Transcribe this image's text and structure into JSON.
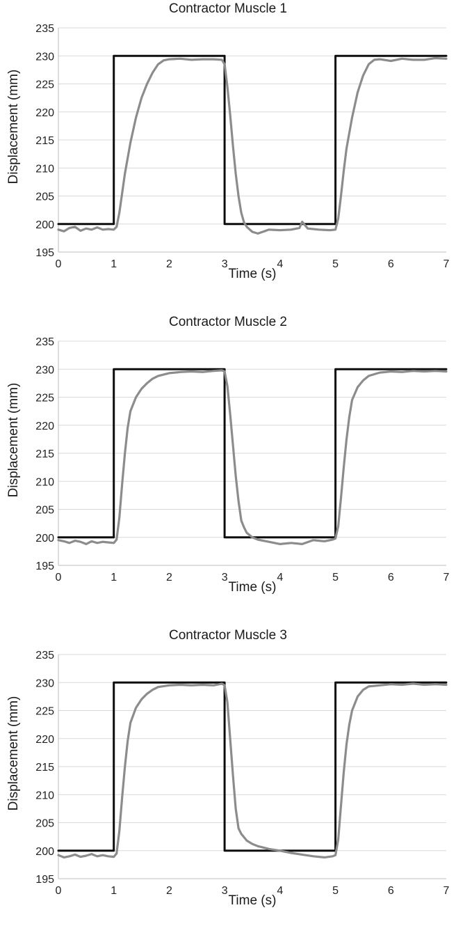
{
  "chart_data": [
    {
      "type": "line",
      "title": "Contractor Muscle 1",
      "xlabel": "Time (s)",
      "ylabel": "Displacement (mm)",
      "xlim": [
        0,
        7
      ],
      "ylim": [
        195,
        235
      ],
      "x_ticks": [
        "0",
        "1",
        "2",
        "3",
        "4",
        "5",
        "6",
        "7"
      ],
      "y_ticks": [
        "195",
        "200",
        "205",
        "210",
        "215",
        "220",
        "225",
        "230",
        "235"
      ],
      "grid": true,
      "legend": "none",
      "series": [
        {
          "style": "black",
          "x": [
            0,
            1,
            1,
            3,
            3,
            5,
            5,
            7
          ],
          "y": [
            200,
            200,
            230,
            230,
            200,
            200,
            230,
            230
          ]
        },
        {
          "style": "gray",
          "x": [
            0,
            0.1,
            0.2,
            0.3,
            0.4,
            0.5,
            0.6,
            0.7,
            0.8,
            0.9,
            1.0,
            1.05,
            1.1,
            1.15,
            1.2,
            1.3,
            1.4,
            1.5,
            1.6,
            1.7,
            1.8,
            1.9,
            2.0,
            2.2,
            2.4,
            2.6,
            2.8,
            2.95,
            3.0,
            3.05,
            3.1,
            3.15,
            3.2,
            3.25,
            3.3,
            3.35,
            3.4,
            3.5,
            3.6,
            3.8,
            4.0,
            4.2,
            4.35,
            4.4,
            4.45,
            4.5,
            4.7,
            4.9,
            5.0,
            5.05,
            5.1,
            5.15,
            5.2,
            5.3,
            5.4,
            5.5,
            5.6,
            5.7,
            5.8,
            6.0,
            6.2,
            6.4,
            6.6,
            6.8,
            7.0
          ],
          "y": [
            199,
            198.7,
            199.3,
            199.5,
            198.8,
            199.2,
            199.0,
            199.4,
            199.0,
            199.1,
            199.0,
            199.5,
            202.0,
            205.5,
            209.0,
            214.5,
            219.0,
            222.5,
            225.0,
            227.0,
            228.5,
            229.2,
            229.4,
            229.5,
            229.3,
            229.4,
            229.4,
            229.3,
            228.5,
            224.5,
            219.5,
            214.0,
            209.0,
            205.0,
            202.0,
            200.3,
            199.5,
            198.6,
            198.3,
            199.0,
            198.9,
            199.0,
            199.3,
            200.4,
            199.8,
            199.2,
            199.0,
            198.9,
            199.0,
            201.0,
            205.0,
            209.5,
            213.5,
            219.0,
            223.5,
            226.5,
            228.5,
            229.3,
            229.4,
            229.1,
            229.5,
            229.3,
            229.3,
            229.6,
            229.5
          ]
        }
      ]
    },
    {
      "type": "line",
      "title": "Contractor Muscle 2",
      "xlabel": "Time (s)",
      "ylabel": "Displacement (mm)",
      "xlim": [
        0,
        7
      ],
      "ylim": [
        195,
        235
      ],
      "x_ticks": [
        "0",
        "1",
        "2",
        "3",
        "4",
        "5",
        "6",
        "7"
      ],
      "y_ticks": [
        "195",
        "200",
        "205",
        "210",
        "215",
        "220",
        "225",
        "230",
        "235"
      ],
      "grid": true,
      "legend": "none",
      "series": [
        {
          "style": "black",
          "x": [
            0,
            1,
            1,
            3,
            3,
            5,
            5,
            7
          ],
          "y": [
            200,
            200,
            230,
            230,
            200,
            200,
            230,
            230
          ]
        },
        {
          "style": "gray",
          "x": [
            0,
            0.1,
            0.2,
            0.3,
            0.4,
            0.5,
            0.6,
            0.7,
            0.8,
            0.9,
            1.0,
            1.05,
            1.1,
            1.15,
            1.2,
            1.25,
            1.3,
            1.4,
            1.5,
            1.6,
            1.7,
            1.8,
            2.0,
            2.2,
            2.4,
            2.6,
            2.8,
            2.95,
            3.0,
            3.05,
            3.1,
            3.15,
            3.2,
            3.25,
            3.3,
            3.35,
            3.4,
            3.5,
            3.6,
            3.8,
            4.0,
            4.2,
            4.4,
            4.6,
            4.8,
            4.95,
            5.0,
            5.05,
            5.1,
            5.15,
            5.2,
            5.25,
            5.3,
            5.4,
            5.5,
            5.6,
            5.8,
            6.0,
            6.2,
            6.4,
            6.6,
            6.8,
            7.0
          ],
          "y": [
            199.5,
            199.3,
            199.0,
            199.4,
            199.2,
            198.8,
            199.3,
            199.0,
            199.2,
            199.1,
            199.0,
            199.6,
            203.5,
            209.5,
            215.0,
            219.5,
            222.5,
            225.0,
            226.5,
            227.5,
            228.3,
            228.8,
            229.3,
            229.5,
            229.6,
            229.5,
            229.7,
            229.8,
            229.6,
            227.0,
            222.0,
            216.5,
            211.0,
            206.5,
            203.0,
            201.8,
            200.8,
            200.0,
            199.6,
            199.2,
            198.8,
            199.0,
            198.8,
            199.5,
            199.3,
            199.6,
            199.8,
            202.0,
            207.0,
            212.5,
            217.5,
            221.5,
            224.5,
            226.8,
            228.0,
            228.8,
            229.4,
            229.6,
            229.5,
            229.7,
            229.6,
            229.7,
            229.6
          ]
        }
      ]
    },
    {
      "type": "line",
      "title": "Contractor Muscle 3",
      "xlabel": "Time (s)",
      "ylabel": "Displacement (mm)",
      "xlim": [
        0,
        7
      ],
      "ylim": [
        195,
        235
      ],
      "x_ticks": [
        "0",
        "1",
        "2",
        "3",
        "4",
        "5",
        "6",
        "7"
      ],
      "y_ticks": [
        "195",
        "200",
        "205",
        "210",
        "215",
        "220",
        "225",
        "230",
        "235"
      ],
      "grid": true,
      "legend": "none",
      "series": [
        {
          "style": "black",
          "x": [
            0,
            1,
            1,
            3,
            3,
            5,
            5,
            7
          ],
          "y": [
            200,
            200,
            230,
            230,
            200,
            200,
            230,
            230
          ]
        },
        {
          "style": "gray",
          "x": [
            0,
            0.1,
            0.2,
            0.3,
            0.4,
            0.5,
            0.6,
            0.7,
            0.8,
            0.9,
            1.0,
            1.05,
            1.1,
            1.15,
            1.2,
            1.25,
            1.3,
            1.4,
            1.5,
            1.6,
            1.7,
            1.8,
            2.0,
            2.2,
            2.4,
            2.6,
            2.8,
            2.95,
            3.0,
            3.05,
            3.1,
            3.15,
            3.2,
            3.25,
            3.3,
            3.4,
            3.5,
            3.6,
            3.8,
            4.0,
            4.2,
            4.4,
            4.6,
            4.8,
            4.95,
            5.0,
            5.05,
            5.1,
            5.15,
            5.2,
            5.25,
            5.3,
            5.4,
            5.5,
            5.6,
            5.8,
            6.0,
            6.2,
            6.4,
            6.6,
            6.8,
            7.0
          ],
          "y": [
            199.2,
            198.8,
            199.0,
            199.3,
            198.9,
            199.1,
            199.4,
            199.0,
            199.2,
            199.0,
            198.9,
            199.5,
            203.5,
            209.5,
            215.0,
            219.5,
            222.8,
            225.5,
            227.0,
            228.0,
            228.7,
            229.2,
            229.5,
            229.6,
            229.5,
            229.6,
            229.5,
            229.8,
            229.5,
            226.5,
            220.0,
            213.5,
            207.5,
            204.0,
            203.0,
            201.8,
            201.2,
            200.8,
            200.3,
            200.0,
            199.6,
            199.3,
            199.0,
            198.8,
            199.0,
            199.2,
            202.0,
            208.0,
            214.0,
            219.0,
            222.5,
            225.0,
            227.5,
            228.7,
            229.3,
            229.5,
            229.7,
            229.6,
            229.8,
            229.6,
            229.7,
            229.6
          ]
        }
      ]
    }
  ]
}
